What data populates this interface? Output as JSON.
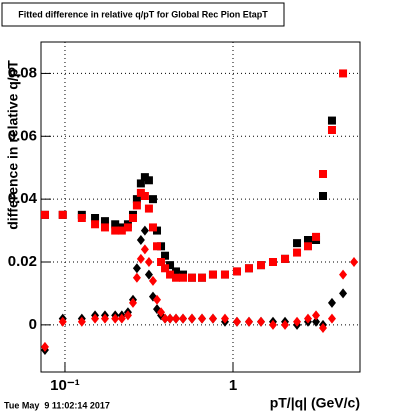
{
  "chart_data": {
    "type": "scatter",
    "title": "Fitted difference in relative q/pT for Global Rec Pion EtapT",
    "y_label": "difference in relative q/pT",
    "x_label": "pT/|q| (GeV/c)",
    "timestamp": "Tue May  9 11:02:14 2017",
    "log_x": true,
    "grid": true,
    "xlim": [
      0.072,
      5.7
    ],
    "xticks": [
      {
        "value": 0.1,
        "label": "10⁻¹"
      },
      1
    ],
    "ylim": [
      -0.015,
      0.09
    ],
    "yticks": [
      0,
      0.02,
      0.04,
      0.06,
      0.08
    ],
    "x": [
      0.076,
      0.097,
      0.126,
      0.151,
      0.173,
      0.199,
      0.218,
      0.237,
      0.254,
      0.268,
      0.283,
      0.299,
      0.316,
      0.334,
      0.353,
      0.373,
      0.394,
      0.422,
      0.458,
      0.504,
      0.57,
      0.654,
      0.76,
      0.896,
      1.056,
      1.245,
      1.468,
      1.73,
      2.04,
      2.405,
      2.795,
      3.12,
      3.433,
      3.882,
      4.519,
      5.25
    ],
    "series": [
      {
        "color": "#000000",
        "marker": "square",
        "values": [
          0.035,
          0.035,
          0.035,
          0.034,
          0.033,
          0.032,
          0.031,
          0.032,
          0.035,
          0.04,
          0.045,
          0.047,
          0.046,
          0.04,
          0.03,
          0.025,
          0.022,
          0.019,
          0.017,
          0.016,
          0.015,
          0.015,
          0.016,
          0.016,
          0.017,
          0.018,
          0.019,
          0.02,
          0.021,
          0.026,
          0.027,
          0.027,
          0.041,
          0.065,
          null,
          null
        ]
      },
      {
        "color": "#000000",
        "marker": "diamond",
        "values": [
          -0.008,
          0.002,
          0.002,
          0.003,
          0.003,
          0.003,
          0.003,
          0.004,
          0.008,
          0.018,
          0.027,
          0.03,
          0.016,
          0.009,
          0.005,
          0.003,
          0.002,
          0.002,
          0.002,
          0.002,
          0.002,
          0.002,
          0.002,
          0.001,
          0.001,
          0.001,
          0.001,
          0.001,
          0.001,
          0.0,
          0.001,
          0.001,
          0.0,
          0.007,
          0.01,
          null
        ]
      },
      {
        "color": "#ff0000",
        "marker": "square",
        "values": [
          0.035,
          0.035,
          0.034,
          0.032,
          0.031,
          0.03,
          0.03,
          0.031,
          0.034,
          0.038,
          0.042,
          0.041,
          0.037,
          0.031,
          0.025,
          0.02,
          0.018,
          0.016,
          0.015,
          0.015,
          0.015,
          0.015,
          0.016,
          0.016,
          0.017,
          0.018,
          0.019,
          0.02,
          0.021,
          0.023,
          0.025,
          0.028,
          0.048,
          0.062,
          0.08,
          null
        ]
      },
      {
        "color": "#ff0000",
        "marker": "diamond",
        "values": [
          -0.007,
          0.001,
          0.001,
          0.002,
          0.002,
          0.002,
          0.002,
          0.003,
          0.007,
          0.015,
          0.021,
          0.024,
          0.02,
          0.014,
          0.008,
          0.004,
          0.002,
          0.002,
          0.002,
          0.002,
          0.002,
          0.002,
          0.002,
          0.002,
          0.001,
          0.001,
          0.001,
          0.0,
          0.0,
          0.001,
          0.002,
          0.003,
          -0.001,
          0.002,
          0.016,
          0.02
        ]
      }
    ]
  }
}
